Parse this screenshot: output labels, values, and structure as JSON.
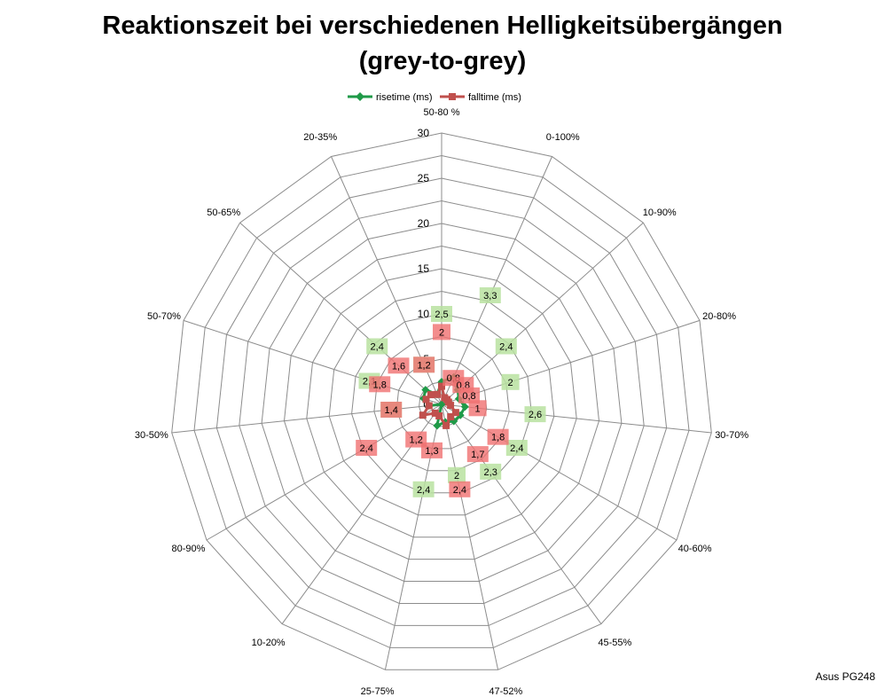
{
  "chart_data": {
    "type": "radar",
    "title_line1": "Reaktionszeit bei verschiedenen Helligkeitsübergängen",
    "title_line2": "(grey-to-grey)",
    "categories": [
      "50-80 %",
      "0-100%",
      "10-90%",
      "20-80%",
      "30-70%",
      "40-60%",
      "45-55%",
      "47-52%",
      "25-75%",
      "10-20%",
      "80-90%",
      "30-50%",
      "50-70%",
      "50-65%",
      "20-35%"
    ],
    "ticks": [
      "0",
      "5",
      "10",
      "15",
      "20",
      "25",
      "30"
    ],
    "rmax": 30,
    "legend_position": "top",
    "series": [
      {
        "name": "risetime (ms)",
        "color": "#1f9a48",
        "label_bg": "#b9e2a0",
        "values": [
          2.5,
          3.3,
          2.4,
          2.0,
          2.6,
          2.4,
          2.3,
          2.0,
          2.4,
          0,
          0,
          1.4,
          2.1,
          2.4,
          1.2
        ],
        "labels": [
          "2,5",
          "3,3",
          "2,4",
          "2",
          "2,6",
          "2,4",
          "2,3",
          "2",
          "2,4",
          "",
          "",
          "1,4",
          "2,1",
          "2,4",
          "1,2"
        ]
      },
      {
        "name": "falltime (ms)",
        "color": "#c0504d",
        "label_bg": "#f07070",
        "values": [
          2.0,
          0.8,
          0.8,
          0.8,
          1.0,
          1.8,
          1.7,
          2.4,
          1.3,
          1.2,
          2.4,
          1.4,
          1.8,
          1.6,
          1.2
        ],
        "labels": [
          "2",
          "0,8",
          "0,8",
          "0,8",
          "1",
          "1,8",
          "1,7",
          "2,4",
          "1,3",
          "1,2",
          "2,4",
          "1,4",
          "1,8",
          "1,6",
          "1,2"
        ]
      }
    ]
  },
  "credit": "Asus PG248"
}
